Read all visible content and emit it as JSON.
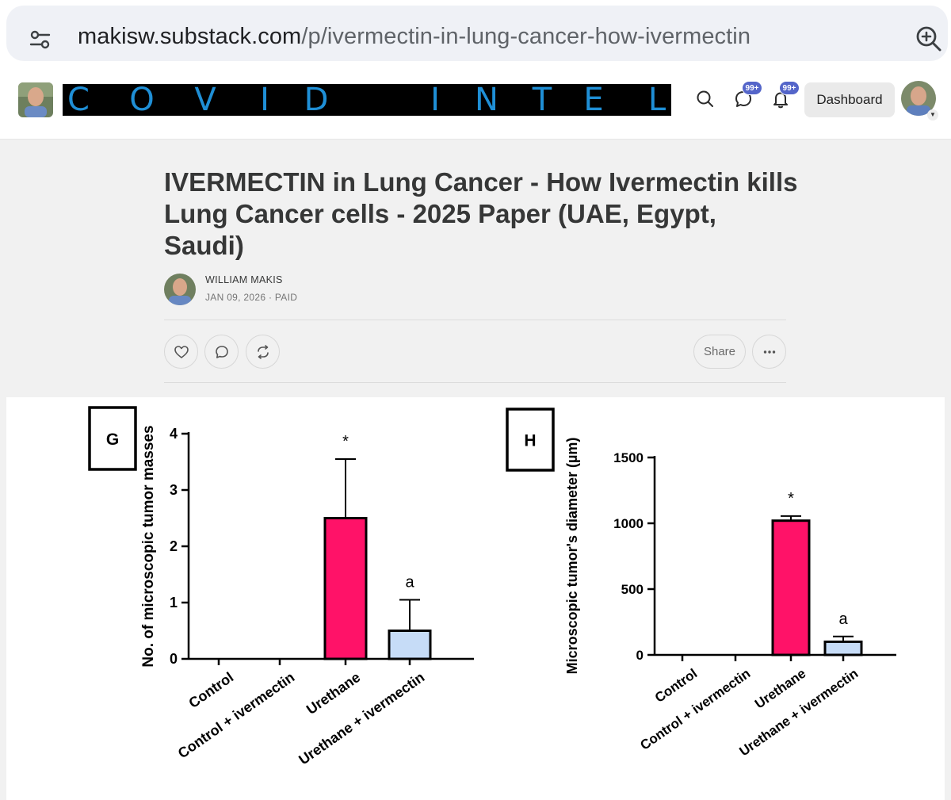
{
  "browser": {
    "url_host": "makisw.substack.com",
    "url_path": "/p/ivermectin-in-lung-cancer-how-ivermectin",
    "icons": {
      "site_settings": "tune-icon",
      "zoom": "zoom-in-icon"
    }
  },
  "header": {
    "publication_name": "COVID INTEL",
    "logo_letters": [
      "C",
      "O",
      "V",
      "I",
      "D",
      "I",
      "N",
      "T",
      "E",
      "L"
    ],
    "logo_color": "#1f8fd6",
    "search_icon": "search-icon",
    "chat_icon": "chat-bubble-icon",
    "chat_badge": "99+",
    "notifications_icon": "bell-icon",
    "notifications_badge": "99+",
    "badge_color": "#5465c9",
    "dashboard_label": "Dashboard",
    "user_menu_icon": "caret-down-icon"
  },
  "post": {
    "title": "IVERMECTIN in Lung Cancer - How Ivermectin kills Lung Cancer cells - 2025 Paper (UAE, Egypt, Saudi)",
    "author": "WILLIAM MAKIS",
    "meta": "JAN 09, 2026 · PAID",
    "actions": {
      "like_icon": "heart-icon",
      "comment_icon": "comment-icon",
      "restack_icon": "restack-icon",
      "share_label": "Share",
      "more_icon": "more-horizontal-icon"
    }
  },
  "chart_data": [
    {
      "type": "bar",
      "panel_label": "G",
      "ylabel": "No. of microscopic tumor masses",
      "xlabel": "",
      "categories": [
        "Control",
        "Control + ivermectin",
        "Urethane",
        "Urethane + ivermectin"
      ],
      "values": [
        0,
        0,
        2.5,
        0.5
      ],
      "error_upper": [
        0,
        0,
        1.05,
        0.55
      ],
      "annotations": [
        "",
        "",
        "*",
        "a"
      ],
      "bar_colors": [
        "#ffffff",
        "#ffffff",
        "#ff1268",
        "#c6dcf7"
      ],
      "ylim": [
        0,
        4
      ],
      "yticks": [
        "0",
        "1",
        "2",
        "3",
        "4"
      ],
      "grid": false,
      "legend": "none"
    },
    {
      "type": "bar",
      "panel_label": "H",
      "ylabel": "Microscopic tumor's diameter (µm)",
      "xlabel": "",
      "categories": [
        "Control",
        "Control + ivermectin",
        "Urethane",
        "Urethane + ivermectin"
      ],
      "values": [
        0,
        0,
        1020,
        100
      ],
      "error_upper": [
        0,
        0,
        35,
        40
      ],
      "annotations": [
        "",
        "",
        "*",
        "a"
      ],
      "bar_colors": [
        "#ffffff",
        "#ffffff",
        "#ff1268",
        "#c6dcf7"
      ],
      "ylim": [
        0,
        1500
      ],
      "yticks": [
        "0",
        "500",
        "1000",
        "1500"
      ],
      "grid": false,
      "legend": "none"
    }
  ]
}
